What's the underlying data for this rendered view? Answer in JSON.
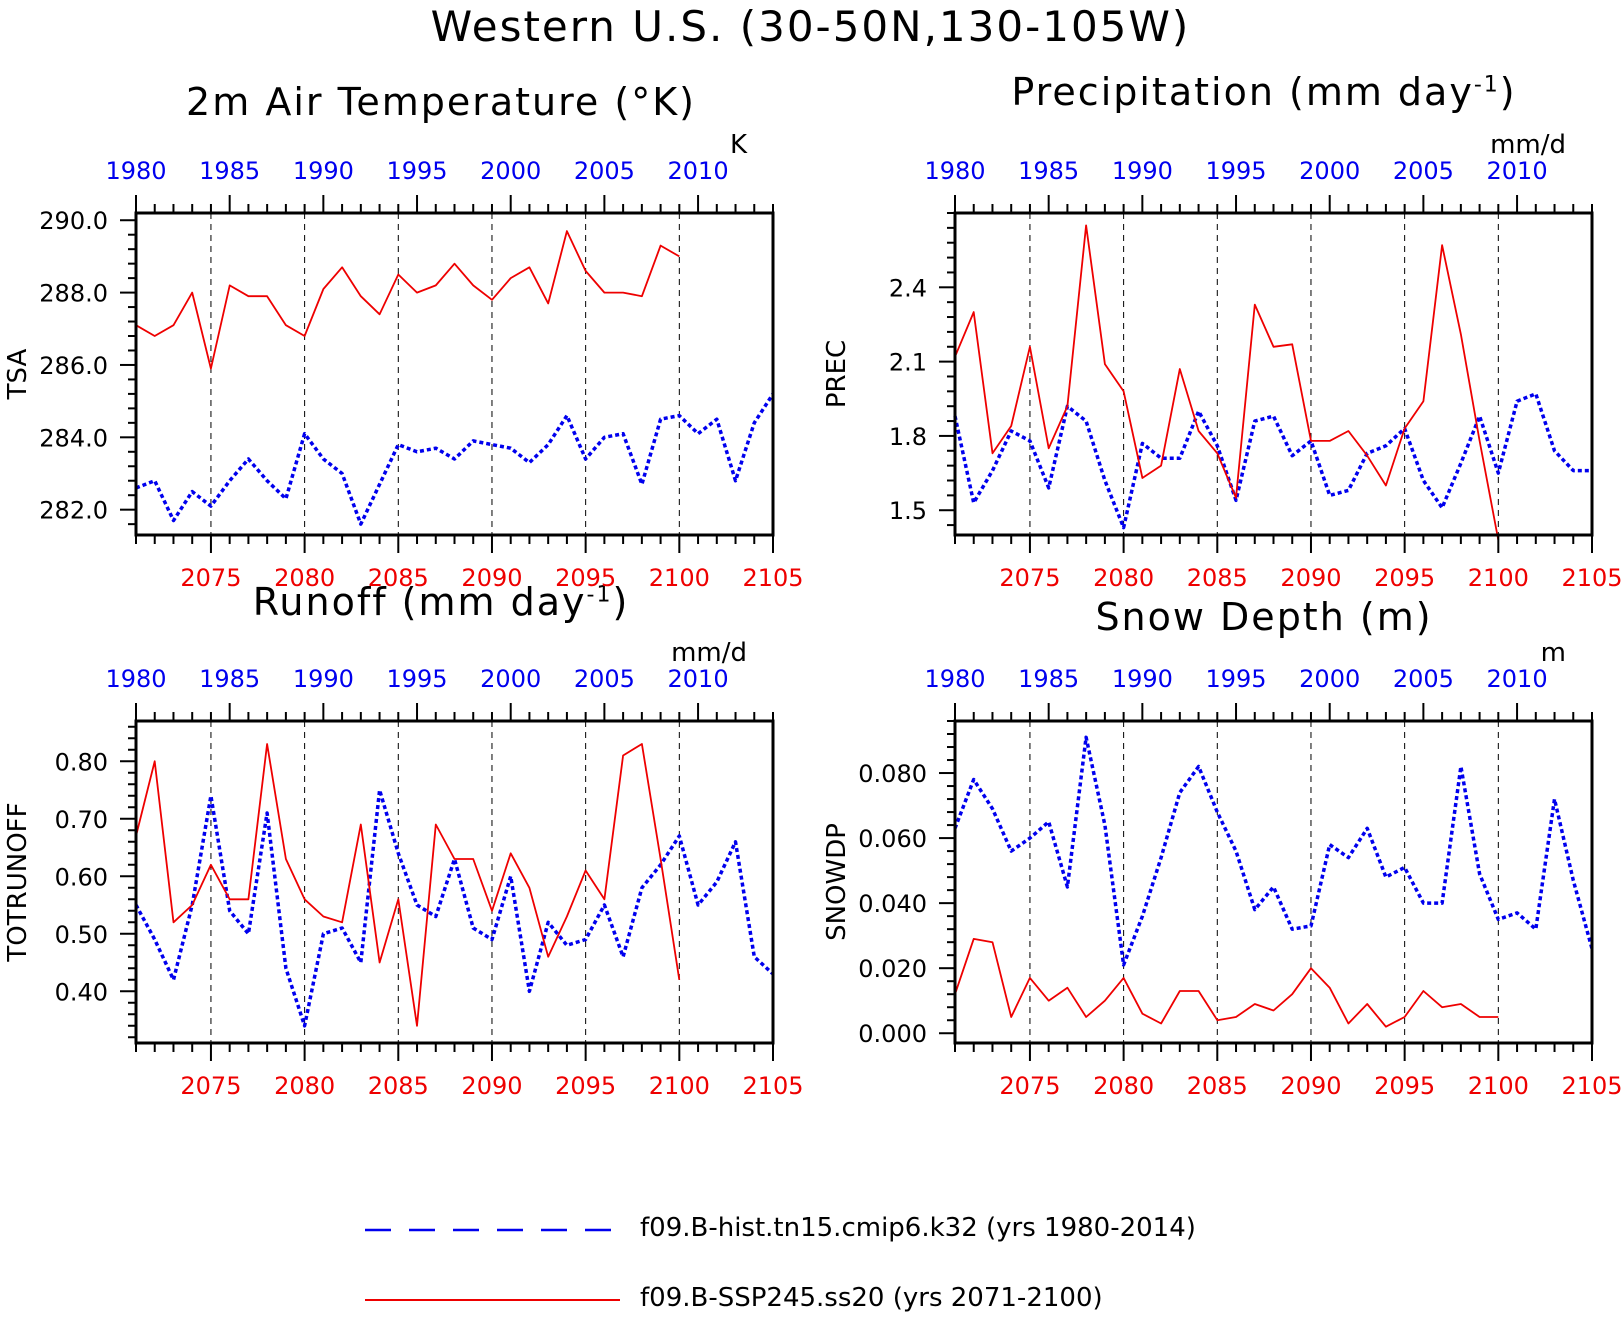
{
  "title": "Western U.S. (30-50N,130-105W)",
  "colors": {
    "hist": "#0000ee",
    "ssp": "#ee0000",
    "axis": "#000000"
  },
  "legend": [
    {
      "label": "f09.B-hist.tn15.cmip6.k32 (yrs 1980-2014)",
      "color": "#0000ee",
      "style": "dotted"
    },
    {
      "label": "f09.B-SSP245.ss20 (yrs 2071-2100)",
      "color": "#ee0000",
      "style": "solid"
    }
  ],
  "panels": [
    {
      "title": "2m Air Temperature (°K)"
    },
    {
      "title_main": "Precipitation (mm day",
      "title_sup": "-1",
      "title_end": ")"
    },
    {
      "title_main": "Runoff (mm day",
      "title_sup": "-1",
      "title_end": ")"
    },
    {
      "title": "Snow Depth (m)"
    }
  ],
  "chart_data": [
    {
      "type": "line",
      "title": "2m Air Temperature (°K)",
      "ylabel": "TSA",
      "units": "K",
      "ylim": [
        281.3,
        290.2
      ],
      "yticks": [
        282.0,
        284.0,
        286.0,
        288.0,
        290.0
      ],
      "ytick_labels": [
        "282.0",
        "284.0",
        "286.0",
        "288.0",
        "290.0"
      ],
      "top_axis": {
        "range": [
          1980,
          2014
        ],
        "ticks": [
          1980,
          1985,
          1990,
          1995,
          2000,
          2005,
          2010
        ]
      },
      "bottom_axis": {
        "range": [
          2071,
          2105
        ],
        "ticks": [
          2075,
          2080,
          2085,
          2090,
          2095,
          2100,
          2105
        ]
      },
      "series": [
        {
          "name": "f09.B-hist.tn15.cmip6.k32 (yrs 1980-2014)",
          "axis": "top",
          "x_start": 1980,
          "values": [
            282.6,
            282.8,
            281.7,
            282.5,
            282.1,
            282.8,
            283.4,
            282.8,
            282.3,
            284.1,
            283.4,
            283.0,
            281.6,
            282.7,
            283.8,
            283.6,
            283.7,
            283.4,
            283.9,
            283.8,
            283.7,
            283.3,
            283.8,
            284.6,
            283.4,
            284.0,
            284.1,
            282.7,
            284.5,
            284.6,
            284.1,
            284.5,
            282.8,
            284.4,
            285.2
          ]
        },
        {
          "name": "f09.B-SSP245.ss20 (yrs 2071-2100)",
          "axis": "bottom",
          "x_start": 2071,
          "values": [
            287.1,
            286.8,
            287.1,
            288.0,
            285.9,
            288.2,
            287.9,
            287.9,
            287.1,
            286.8,
            288.1,
            288.7,
            287.9,
            287.4,
            288.5,
            288.0,
            288.2,
            288.8,
            288.2,
            287.8,
            288.4,
            288.7,
            287.7,
            289.7,
            288.6,
            288.0,
            288.0,
            287.9,
            289.3,
            289.0
          ]
        }
      ]
    },
    {
      "type": "line",
      "title": "Precipitation (mm day-1)",
      "ylabel": "PREC",
      "units": "mm/d",
      "ylim": [
        1.4,
        2.7
      ],
      "yticks": [
        1.5,
        1.8,
        2.1,
        2.4
      ],
      "ytick_labels": [
        "1.5",
        "1.8",
        "2.1",
        "2.4"
      ],
      "top_axis": {
        "range": [
          1980,
          2014
        ],
        "ticks": [
          1980,
          1985,
          1990,
          1995,
          2000,
          2005,
          2010
        ]
      },
      "bottom_axis": {
        "range": [
          2071,
          2105
        ],
        "ticks": [
          2075,
          2080,
          2085,
          2090,
          2095,
          2100,
          2105
        ]
      },
      "series": [
        {
          "name": "f09.B-hist.tn15.cmip6.k32 (yrs 1980-2014)",
          "axis": "top",
          "x_start": 1980,
          "values": [
            1.88,
            1.53,
            1.66,
            1.82,
            1.78,
            1.59,
            1.92,
            1.86,
            1.62,
            1.43,
            1.77,
            1.71,
            1.71,
            1.9,
            1.76,
            1.54,
            1.86,
            1.88,
            1.72,
            1.78,
            1.56,
            1.58,
            1.73,
            1.76,
            1.83,
            1.62,
            1.51,
            1.69,
            1.88,
            1.65,
            1.94,
            1.97,
            1.74,
            1.66,
            1.66
          ]
        },
        {
          "name": "f09.B-SSP245.ss20 (yrs 2071-2100)",
          "axis": "bottom",
          "x_start": 2071,
          "values": [
            2.12,
            2.3,
            1.73,
            1.84,
            2.16,
            1.75,
            1.92,
            2.65,
            2.09,
            1.98,
            1.63,
            1.68,
            2.07,
            1.82,
            1.73,
            1.55,
            2.33,
            2.16,
            2.17,
            1.78,
            1.78,
            1.82,
            1.72,
            1.6,
            1.83,
            1.94,
            2.57,
            2.21,
            1.78,
            1.38
          ]
        }
      ]
    },
    {
      "type": "line",
      "title": "Runoff (mm day-1)",
      "ylabel": "TOTRUNOFF",
      "units": "mm/d",
      "ylim": [
        0.31,
        0.87
      ],
      "yticks": [
        0.4,
        0.5,
        0.6,
        0.7,
        0.8
      ],
      "ytick_labels": [
        "0.40",
        "0.50",
        "0.60",
        "0.70",
        "0.80"
      ],
      "top_axis": {
        "range": [
          1980,
          2014
        ],
        "ticks": [
          1980,
          1985,
          1990,
          1995,
          2000,
          2005,
          2010
        ]
      },
      "bottom_axis": {
        "range": [
          2071,
          2105
        ],
        "ticks": [
          2075,
          2080,
          2085,
          2090,
          2095,
          2100,
          2105
        ]
      },
      "series": [
        {
          "name": "f09.B-hist.tn15.cmip6.k32 (yrs 1980-2014)",
          "axis": "top",
          "x_start": 1980,
          "values": [
            0.55,
            0.49,
            0.42,
            0.55,
            0.74,
            0.54,
            0.5,
            0.71,
            0.44,
            0.34,
            0.5,
            0.51,
            0.45,
            0.75,
            0.64,
            0.55,
            0.53,
            0.63,
            0.51,
            0.49,
            0.6,
            0.4,
            0.52,
            0.48,
            0.49,
            0.55,
            0.46,
            0.58,
            0.62,
            0.67,
            0.55,
            0.59,
            0.66,
            0.46,
            0.43
          ]
        },
        {
          "name": "f09.B-SSP245.ss20 (yrs 2071-2100)",
          "axis": "bottom",
          "x_start": 2071,
          "values": [
            0.67,
            0.8,
            0.52,
            0.55,
            0.62,
            0.56,
            0.56,
            0.83,
            0.63,
            0.56,
            0.53,
            0.52,
            0.69,
            0.45,
            0.56,
            0.34,
            0.69,
            0.63,
            0.63,
            0.54,
            0.64,
            0.58,
            0.46,
            0.53,
            0.61,
            0.56,
            0.81,
            0.83,
            0.63,
            0.42
          ]
        }
      ]
    },
    {
      "type": "line",
      "title": "Snow Depth (m)",
      "ylabel": "SNOWDP",
      "units": "m",
      "ylim": [
        -0.003,
        0.096
      ],
      "yticks": [
        0.0,
        0.02,
        0.04,
        0.06,
        0.08
      ],
      "ytick_labels": [
        "0.000",
        "0.020",
        "0.040",
        "0.060",
        "0.080"
      ],
      "top_axis": {
        "range": [
          1980,
          2014
        ],
        "ticks": [
          1980,
          1985,
          1990,
          1995,
          2000,
          2005,
          2010
        ]
      },
      "bottom_axis": {
        "range": [
          2071,
          2105
        ],
        "ticks": [
          2075,
          2080,
          2085,
          2090,
          2095,
          2100,
          2105
        ]
      },
      "series": [
        {
          "name": "f09.B-hist.tn15.cmip6.k32 (yrs 1980-2014)",
          "axis": "top",
          "x_start": 1980,
          "values": [
            0.063,
            0.078,
            0.069,
            0.056,
            0.06,
            0.065,
            0.045,
            0.091,
            0.064,
            0.021,
            0.036,
            0.054,
            0.074,
            0.082,
            0.068,
            0.056,
            0.038,
            0.045,
            0.032,
            0.033,
            0.058,
            0.054,
            0.063,
            0.048,
            0.051,
            0.04,
            0.04,
            0.082,
            0.049,
            0.035,
            0.037,
            0.032,
            0.072,
            0.047,
            0.026
          ]
        },
        {
          "name": "f09.B-SSP245.ss20 (yrs 2071-2100)",
          "axis": "bottom",
          "x_start": 2071,
          "values": [
            0.012,
            0.029,
            0.028,
            0.005,
            0.017,
            0.01,
            0.014,
            0.005,
            0.01,
            0.017,
            0.006,
            0.003,
            0.013,
            0.013,
            0.004,
            0.005,
            0.009,
            0.007,
            0.012,
            0.02,
            0.014,
            0.003,
            0.009,
            0.002,
            0.005,
            0.013,
            0.008,
            0.009,
            0.005,
            0.005
          ]
        }
      ]
    }
  ]
}
